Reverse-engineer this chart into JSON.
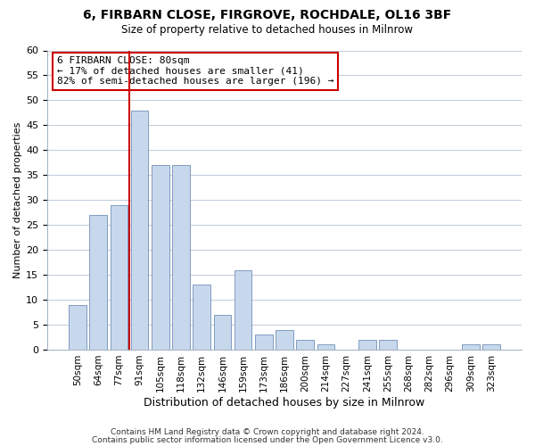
{
  "title": "6, FIRBARN CLOSE, FIRGROVE, ROCHDALE, OL16 3BF",
  "subtitle": "Size of property relative to detached houses in Milnrow",
  "xlabel": "Distribution of detached houses by size in Milnrow",
  "ylabel": "Number of detached properties",
  "bar_color": "#c8d8ec",
  "bar_edge_color": "#7090b8",
  "grid_color": "#c0ccd8",
  "categories": [
    "50sqm",
    "64sqm",
    "77sqm",
    "91sqm",
    "105sqm",
    "118sqm",
    "132sqm",
    "146sqm",
    "159sqm",
    "173sqm",
    "186sqm",
    "200sqm",
    "214sqm",
    "227sqm",
    "241sqm",
    "255sqm",
    "268sqm",
    "282sqm",
    "296sqm",
    "309sqm",
    "323sqm"
  ],
  "values": [
    9,
    27,
    29,
    48,
    37,
    37,
    13,
    7,
    16,
    3,
    4,
    2,
    1,
    0,
    2,
    2,
    0,
    0,
    0,
    1,
    1
  ],
  "ylim": [
    0,
    60
  ],
  "yticks": [
    0,
    5,
    10,
    15,
    20,
    25,
    30,
    35,
    40,
    45,
    50,
    55,
    60
  ],
  "vline_color": "#cc0000",
  "annotation_line1": "6 FIRBARN CLOSE: 80sqm",
  "annotation_line2": "← 17% of detached houses are smaller (41)",
  "annotation_line3": "82% of semi-detached houses are larger (196) →",
  "annotation_box_edge": "#cc0000",
  "footer_line1": "Contains HM Land Registry data © Crown copyright and database right 2024.",
  "footer_line2": "Contains public sector information licensed under the Open Government Licence v3.0.",
  "background_color": "#ffffff",
  "plot_background": "#ffffff"
}
